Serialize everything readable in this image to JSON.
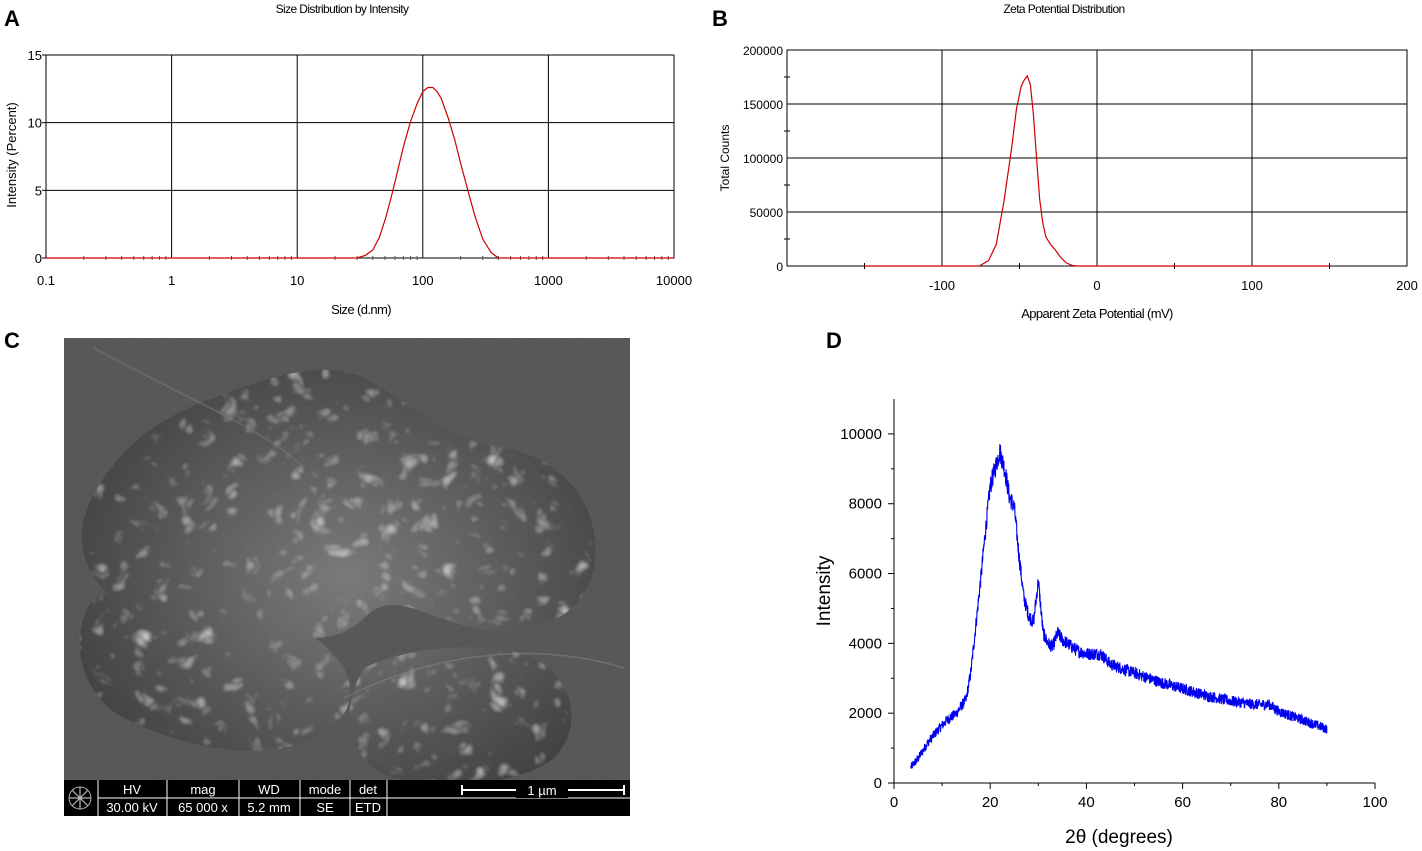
{
  "panels": {
    "A": "A",
    "B": "B",
    "C": "C",
    "D": "D"
  },
  "chart_data": [
    {
      "id": "A",
      "type": "line",
      "title": "Size Distribution by Intensity",
      "xlabel": "Size (d.nm)",
      "ylabel": "Intensity (Percent)",
      "x_scale": "log",
      "xlim": [
        0.1,
        10000
      ],
      "ylim": [
        0,
        15
      ],
      "x_ticks": [
        "0.1",
        "1",
        "10",
        "100",
        "1000",
        "10000"
      ],
      "y_ticks": [
        "0",
        "5",
        "10",
        "15"
      ],
      "grid": true,
      "line_color": "#cc0000",
      "series": [
        {
          "x": [
            0.1,
            30,
            35,
            40,
            45,
            50,
            55,
            60,
            70,
            80,
            90,
            100,
            110,
            120,
            130,
            140,
            160,
            180,
            200,
            230,
            260,
            300,
            350,
            400,
            10000
          ],
          "y": [
            0,
            0,
            0.2,
            0.6,
            1.5,
            2.8,
            4.2,
            5.6,
            8.2,
            10.1,
            11.4,
            12.3,
            12.6,
            12.6,
            12.3,
            11.8,
            10.3,
            8.7,
            7.0,
            4.9,
            3.1,
            1.4,
            0.4,
            0,
            0
          ]
        }
      ]
    },
    {
      "id": "B",
      "type": "line",
      "title": "Zeta Potential Distribution",
      "xlabel": "Apparent Zeta Potential (mV)",
      "ylabel": "Total Counts",
      "xlim": [
        -200,
        200
      ],
      "ylim": [
        0,
        200000
      ],
      "x_ticks": [
        "-100",
        "0",
        "100",
        "200"
      ],
      "y_ticks": [
        "0",
        "50000",
        "100000",
        "150000",
        "200000"
      ],
      "grid": true,
      "line_color": "#cc0000",
      "series": [
        {
          "x": [
            -150,
            -76,
            -70,
            -65,
            -60,
            -55,
            -52,
            -49,
            -47,
            -45,
            -43,
            -41,
            -39,
            -37,
            -35,
            -33,
            -30,
            -27,
            -24,
            -20,
            -16,
            -12,
            150
          ],
          "y": [
            0,
            0,
            5000,
            20000,
            60000,
            110000,
            145000,
            166000,
            172000,
            176000,
            168000,
            140000,
            100000,
            62000,
            40000,
            27000,
            20000,
            15000,
            9000,
            3000,
            500,
            0,
            0
          ]
        }
      ]
    },
    {
      "id": "D",
      "type": "line",
      "title": "",
      "xlabel": "2θ (degrees)",
      "ylabel": "Intensity",
      "xlim": [
        0,
        100
      ],
      "ylim": [
        0,
        11000
      ],
      "x_ticks": [
        "0",
        "20",
        "40",
        "60",
        "80",
        "100"
      ],
      "y_ticks": [
        "0",
        "2000",
        "4000",
        "6000",
        "8000",
        "10000"
      ],
      "grid": false,
      "line_color": "#0000ee",
      "series": [
        {
          "x": [
            3.5,
            5,
            7,
            9,
            11,
            13,
            15,
            16,
            17,
            18,
            19,
            20,
            21,
            22,
            23,
            24,
            25,
            26,
            27,
            28,
            29,
            30,
            31,
            32,
            33,
            34,
            35,
            36,
            38,
            40,
            43,
            45,
            50,
            55,
            60,
            65,
            70,
            75,
            78,
            80,
            85,
            90
          ],
          "y": [
            450,
            700,
            1150,
            1500,
            1800,
            2000,
            2400,
            3200,
            4500,
            5800,
            7200,
            8500,
            9000,
            9500,
            9000,
            8200,
            7900,
            6500,
            5300,
            4800,
            4600,
            5800,
            4300,
            4000,
            3900,
            4300,
            4100,
            4000,
            3800,
            3700,
            3700,
            3400,
            3150,
            2900,
            2700,
            2500,
            2350,
            2250,
            2250,
            2050,
            1800,
            1550
          ]
        }
      ]
    }
  ],
  "sem_image": {
    "databar": {
      "hv_label": "HV",
      "hv_value": "30.00 kV",
      "mag_label": "mag",
      "mag_value": "65 000 x",
      "wd_label": "WD",
      "wd_value": "5.2 mm",
      "mode_label": "mode",
      "mode_value": "SE",
      "det_label": "det",
      "det_value": "ETD",
      "scale_label": "1 µm"
    }
  }
}
